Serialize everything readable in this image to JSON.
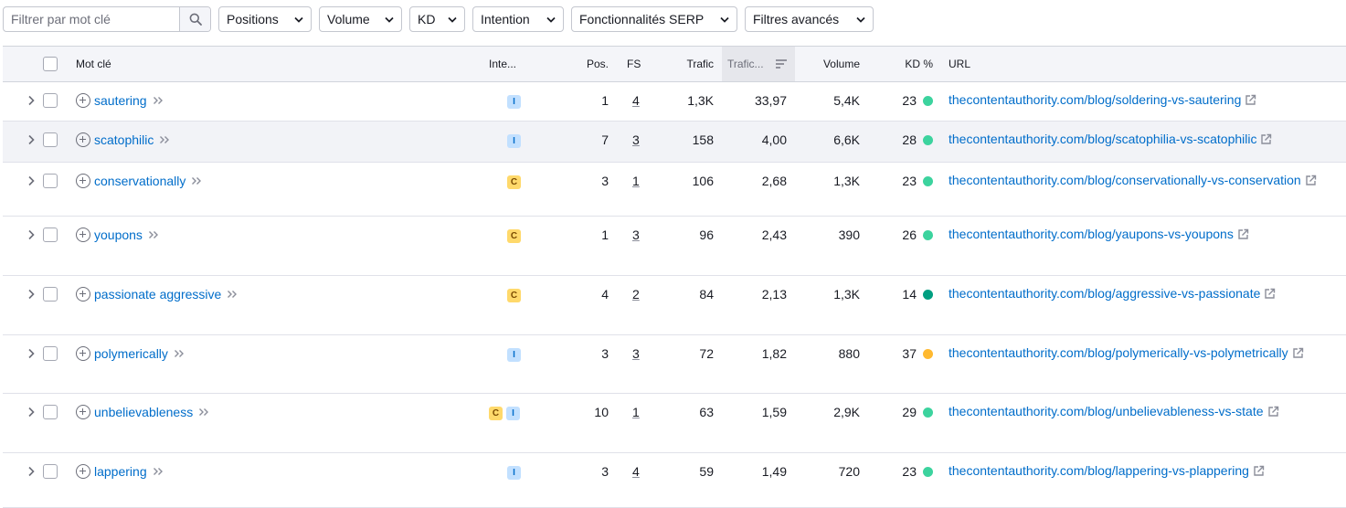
{
  "filters": {
    "search_placeholder": "Filtrer par mot clé",
    "dropdowns": [
      "Positions",
      "Volume",
      "KD",
      "Intention",
      "Fonctionnalités SERP",
      "Filtres avancés"
    ]
  },
  "table": {
    "headers": {
      "keyword": "Mot clé",
      "intent": "Inte...",
      "position": "Pos.",
      "fs": "FS",
      "traffic": "Trafic",
      "traffic_pct": "Trafic...",
      "volume": "Volume",
      "kd": "KD %",
      "url": "URL"
    },
    "rows": [
      {
        "keyword": "sautering",
        "intents": [
          "I"
        ],
        "position": "1",
        "fs": "4",
        "traffic": "1,3K",
        "traffic_pct": "33,97",
        "volume": "5,4K",
        "kd": "23",
        "kd_color": "#3cd39e",
        "url": "thecontentauthority.com/blog/soldering-vs-sautering"
      },
      {
        "keyword": "scatophilic",
        "intents": [
          "I"
        ],
        "position": "7",
        "fs": "3",
        "traffic": "158",
        "traffic_pct": "4,00",
        "volume": "6,6K",
        "kd": "28",
        "kd_color": "#3cd39e",
        "url": "thecontentauthority.com/blog/scatophilia-vs-scatophilic"
      },
      {
        "keyword": "conservationally",
        "intents": [
          "C"
        ],
        "position": "3",
        "fs": "1",
        "traffic": "106",
        "traffic_pct": "2,68",
        "volume": "1,3K",
        "kd": "23",
        "kd_color": "#3cd39e",
        "url": "thecontentauthority.com/blog/conservationally-vs-conservation"
      },
      {
        "keyword": "youpons",
        "intents": [
          "C"
        ],
        "position": "1",
        "fs": "3",
        "traffic": "96",
        "traffic_pct": "2,43",
        "volume": "390",
        "kd": "26",
        "kd_color": "#3cd39e",
        "url": "thecontentauthority.com/blog/yaupons-vs-youpons"
      },
      {
        "keyword": "passionate aggressive",
        "intents": [
          "C"
        ],
        "position": "4",
        "fs": "2",
        "traffic": "84",
        "traffic_pct": "2,13",
        "volume": "1,3K",
        "kd": "14",
        "kd_color": "#009f81",
        "url": "thecontentauthority.com/blog/aggressive-vs-passionate"
      },
      {
        "keyword": "polymerically",
        "intents": [
          "I"
        ],
        "position": "3",
        "fs": "3",
        "traffic": "72",
        "traffic_pct": "1,82",
        "volume": "880",
        "kd": "37",
        "kd_color": "#ffb930",
        "url": "thecontentauthority.com/blog/polymerically-vs-polymetrically"
      },
      {
        "keyword": "unbelievableness",
        "intents": [
          "C",
          "I"
        ],
        "position": "10",
        "fs": "1",
        "traffic": "63",
        "traffic_pct": "1,59",
        "volume": "2,9K",
        "kd": "29",
        "kd_color": "#3cd39e",
        "url": "thecontentauthority.com/blog/unbelievableness-vs-state"
      },
      {
        "keyword": "lappering",
        "intents": [
          "I"
        ],
        "position": "3",
        "fs": "4",
        "traffic": "59",
        "traffic_pct": "1,49",
        "volume": "720",
        "kd": "23",
        "kd_color": "#3cd39e",
        "url": "thecontentauthority.com/blog/lappering-vs-plappering"
      }
    ]
  }
}
